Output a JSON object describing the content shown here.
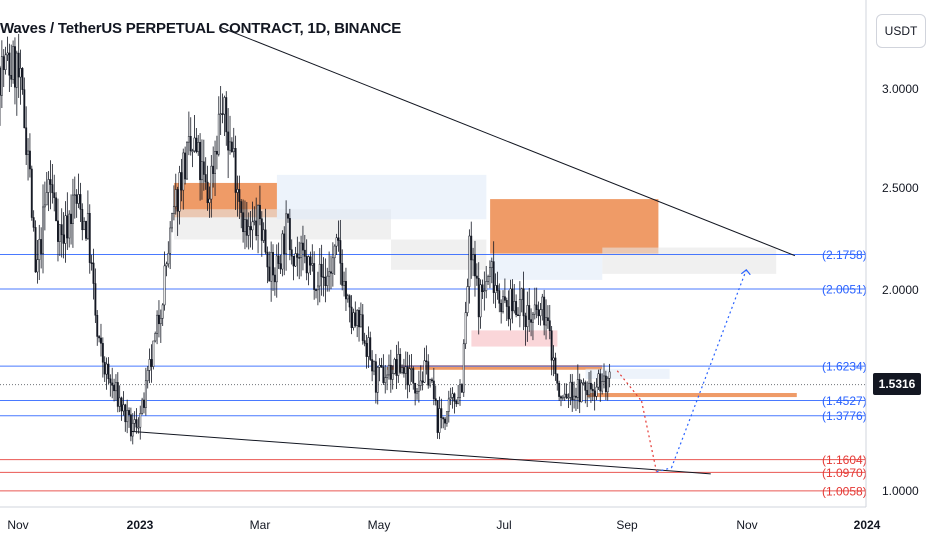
{
  "header": {
    "title": "Waves / TetherUS PERPETUAL CONTRACT, 1D, BINANCE",
    "currency": "USDT"
  },
  "colors": {
    "background": "#ffffff",
    "candle": "#131722",
    "level_blue": "#2962ff",
    "level_red": "#e53935",
    "zone_orange": "#ec8a4c",
    "zone_pink": "#f8c8cc",
    "zone_light": "#dfe9f8",
    "zone_gray": "#e6e6e6",
    "projection": "#2962ff",
    "projection_red": "#e53935"
  },
  "chart_data": {
    "type": "candlestick",
    "title": "Waves / TetherUS PERPETUAL CONTRACT, 1D, BINANCE",
    "timeframe": "1D",
    "exchange": "BINANCE",
    "x_axis_labels": [
      "Nov",
      "2023",
      "Mar",
      "May",
      "Jul",
      "Sep",
      "Nov",
      "2024"
    ],
    "y_axis_labels": [
      "3.0000",
      "2.5000",
      "2.0000",
      "1.0000"
    ],
    "ylim": [
      0.9,
      3.35
    ],
    "last_price": "1.5316",
    "price_path": [
      [
        "2022-11-01",
        3.1
      ],
      [
        "2022-11-07",
        2.7
      ],
      [
        "2022-11-11",
        2.05
      ],
      [
        "2022-11-18",
        2.55
      ],
      [
        "2022-11-25",
        2.25
      ],
      [
        "2022-12-02",
        2.45
      ],
      [
        "2022-12-09",
        2.3
      ],
      [
        "2022-12-14",
        1.75
      ],
      [
        "2022-12-20",
        1.55
      ],
      [
        "2022-12-26",
        1.45
      ],
      [
        "2023-01-01",
        1.3
      ],
      [
        "2023-01-07",
        1.4
      ],
      [
        "2023-01-14",
        1.75
      ],
      [
        "2023-01-21",
        2.2
      ],
      [
        "2023-01-28",
        2.6
      ],
      [
        "2023-02-04",
        2.7
      ],
      [
        "2023-02-11",
        2.45
      ],
      [
        "2023-02-18",
        2.9
      ],
      [
        "2023-02-25",
        2.65
      ],
      [
        "2023-03-04",
        2.25
      ],
      [
        "2023-03-11",
        2.35
      ],
      [
        "2023-03-18",
        2.05
      ],
      [
        "2023-03-25",
        2.3
      ],
      [
        "2023-04-01",
        2.15
      ],
      [
        "2023-04-08",
        2.1
      ],
      [
        "2023-04-15",
        2.05
      ],
      [
        "2023-04-22",
        2.2
      ],
      [
        "2023-04-28",
        1.85
      ],
      [
        "2023-05-05",
        1.8
      ],
      [
        "2023-05-12",
        1.55
      ],
      [
        "2023-05-19",
        1.6
      ],
      [
        "2023-05-26",
        1.62
      ],
      [
        "2023-06-02",
        1.55
      ],
      [
        "2023-06-09",
        1.6
      ],
      [
        "2023-06-14",
        1.35
      ],
      [
        "2023-06-20",
        1.4
      ],
      [
        "2023-06-27",
        1.55
      ],
      [
        "2023-07-01",
        2.2
      ],
      [
        "2023-07-06",
        1.95
      ],
      [
        "2023-07-13",
        2.1
      ],
      [
        "2023-07-20",
        1.9
      ],
      [
        "2023-07-27",
        1.95
      ],
      [
        "2023-08-03",
        1.85
      ],
      [
        "2023-08-10",
        1.9
      ],
      [
        "2023-08-15",
        1.65
      ],
      [
        "2023-08-18",
        1.45
      ],
      [
        "2023-08-25",
        1.5
      ],
      [
        "2023-09-01",
        1.5
      ],
      [
        "2023-09-08",
        1.55
      ],
      [
        "2023-09-14",
        1.53
      ]
    ],
    "levels": [
      {
        "label": "(2.1758)",
        "value": 2.1758,
        "color": "blue"
      },
      {
        "label": "(2.0051)",
        "value": 2.0051,
        "color": "blue"
      },
      {
        "label": "(1.6234)",
        "value": 1.6234,
        "color": "blue"
      },
      {
        "label": "(1.4527)",
        "value": 1.4527,
        "color": "blue"
      },
      {
        "label": "(1.3776)",
        "value": 1.3776,
        "color": "blue"
      },
      {
        "label": "(1.1604)",
        "value": 1.1604,
        "color": "red"
      },
      {
        "label": "(1.0970)",
        "value": 1.097,
        "color": "red"
      },
      {
        "label": "(1.0058)",
        "value": 1.0058,
        "color": "red"
      }
    ],
    "zones": [
      {
        "kind": "orange",
        "x0": "2023-01-24",
        "x1": "2023-03-20",
        "y0": 2.36,
        "y1": 2.53
      },
      {
        "kind": "gray",
        "x0": "2023-01-24",
        "x1": "2023-05-20",
        "y0": 2.25,
        "y1": 2.4
      },
      {
        "kind": "light",
        "x0": "2023-03-20",
        "x1": "2023-07-10",
        "y0": 2.35,
        "y1": 2.57
      },
      {
        "kind": "gray",
        "x0": "2023-05-20",
        "x1": "2023-07-10",
        "y0": 2.1,
        "y1": 2.25
      },
      {
        "kind": "orange",
        "x0": "2023-07-12",
        "x1": "2023-10-10",
        "y0": 2.18,
        "y1": 2.45
      },
      {
        "kind": "light",
        "x0": "2023-07-12",
        "x1": "2023-09-10",
        "y0": 2.05,
        "y1": 2.18
      },
      {
        "kind": "gray",
        "x0": "2023-09-10",
        "x1": "2023-12-12",
        "y0": 2.08,
        "y1": 2.21
      },
      {
        "kind": "pink",
        "x0": "2023-07-02",
        "x1": "2023-08-17",
        "y0": 1.72,
        "y1": 1.8
      },
      {
        "kind": "orange",
        "x0": "2023-05-18",
        "x1": "2023-09-10",
        "y0": 1.605,
        "y1": 1.628
      },
      {
        "kind": "light",
        "x0": "2023-09-01",
        "x1": "2023-10-16",
        "y0": 1.56,
        "y1": 1.61
      },
      {
        "kind": "orange",
        "x0": "2023-09-02",
        "x1": "2023-12-23",
        "y0": 1.47,
        "y1": 1.49
      }
    ],
    "trendlines": [
      {
        "from": [
          "2023-02-18",
          3.3
        ],
        "to": [
          "2023-12-22",
          2.17
        ]
      },
      {
        "from": [
          "2023-01-01",
          1.3
        ],
        "to": [
          "2023-11-07",
          1.09
        ]
      }
    ],
    "projection": [
      [
        "2023-09-18",
        1.6
      ],
      [
        "2023-10-01",
        1.45
      ],
      [
        "2023-10-09",
        1.1
      ],
      [
        "2023-10-17",
        1.12
      ],
      [
        "2023-11-26",
        2.1
      ]
    ]
  }
}
